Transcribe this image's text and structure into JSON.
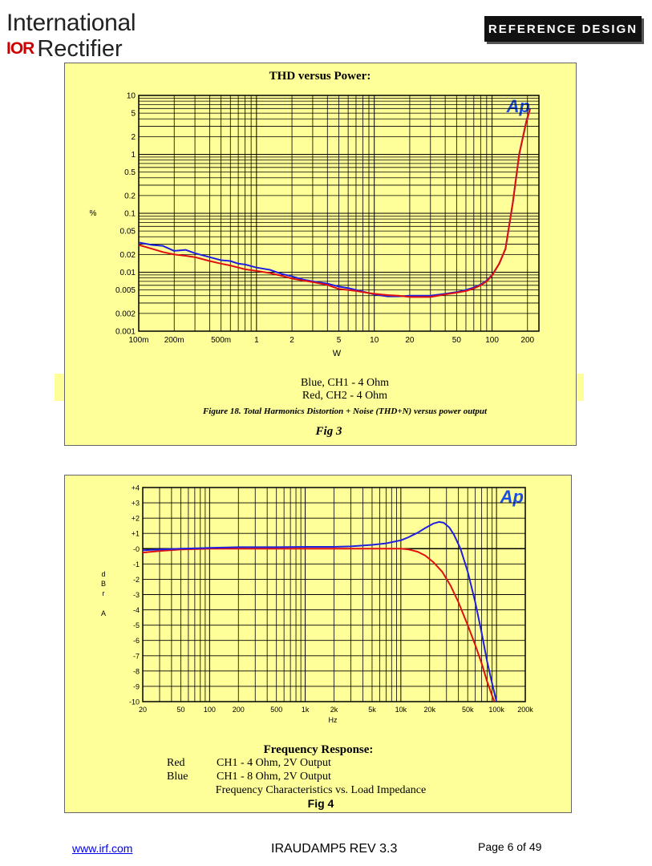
{
  "header": {
    "company_line1": "International",
    "company_mark": "IOR",
    "company_line2": "Rectifier",
    "badge": "REFERENCE DESIGN"
  },
  "fig3": {
    "panel_title": "THD versus Power:",
    "ylabel": "%",
    "xlabel": "W",
    "ap_logo": "Ap",
    "legend_line1": "Blue, CH1 - 4 Ohm",
    "legend_line2": "Red, CH2 - 4 Ohm",
    "caption": "Figure 18.  Total Harmonics Distortion + Noise (THD+N) versus power output",
    "fig_label": "Fig 3"
  },
  "fig4": {
    "ylabel_letters": [
      "d",
      "B",
      "r",
      "",
      "A"
    ],
    "xlabel": "Hz",
    "ap_logo": "Ap",
    "title": "Frequency Response:",
    "legend": [
      {
        "key": "Red",
        "desc": "CH1 - 4 Ohm, 2V Output"
      },
      {
        "key": "Blue",
        "desc": "CH1 - 8 Ohm, 2V Output"
      }
    ],
    "subtitle": "Frequency Characteristics vs. Load Impedance",
    "fig_label": "Fig 4"
  },
  "footer": {
    "link": "www.irf.com",
    "doc": "IRAUDAMP5 REV 3.3",
    "page": "Page 6 of 49"
  },
  "colors": {
    "panel": "#ffff99",
    "blue": "#1f1fe0",
    "red": "#e01010",
    "grid": "#000000"
  },
  "chart_data": [
    {
      "type": "line",
      "title": "THD versus Power:",
      "xlabel": "W",
      "ylabel": "%",
      "xscale": "log",
      "yscale": "log",
      "xlim": [
        0.1,
        250
      ],
      "ylim": [
        0.001,
        10
      ],
      "x_ticks": [
        {
          "v": 0.1,
          "label": "100m"
        },
        {
          "v": 0.2,
          "label": "200m"
        },
        {
          "v": 0.5,
          "label": "500m"
        },
        {
          "v": 1,
          "label": "1"
        },
        {
          "v": 2,
          "label": "2"
        },
        {
          "v": 5,
          "label": "5"
        },
        {
          "v": 10,
          "label": "10"
        },
        {
          "v": 20,
          "label": "20"
        },
        {
          "v": 50,
          "label": "50"
        },
        {
          "v": 100,
          "label": "100"
        },
        {
          "v": 200,
          "label": "200"
        }
      ],
      "y_ticks": [
        {
          "v": 10,
          "label": "10"
        },
        {
          "v": 5,
          "label": "5"
        },
        {
          "v": 2,
          "label": "2"
        },
        {
          "v": 1,
          "label": "1"
        },
        {
          "v": 0.5,
          "label": "0.5"
        },
        {
          "v": 0.2,
          "label": "0.2"
        },
        {
          "v": 0.1,
          "label": "0.1"
        },
        {
          "v": 0.05,
          "label": "0.05"
        },
        {
          "v": 0.02,
          "label": "0.02"
        },
        {
          "v": 0.01,
          "label": "0.01"
        },
        {
          "v": 0.005,
          "label": "0.005"
        },
        {
          "v": 0.002,
          "label": "0.002"
        },
        {
          "v": 0.001,
          "label": "0.001"
        }
      ],
      "legend": "none",
      "grid": true,
      "series": [
        {
          "color": "#1f1fe0",
          "points": [
            [
              0.1,
              0.032
            ],
            [
              0.13,
              0.029
            ],
            [
              0.16,
              0.028
            ],
            [
              0.2,
              0.023
            ],
            [
              0.25,
              0.024
            ],
            [
              0.3,
              0.021
            ],
            [
              0.4,
              0.018
            ],
            [
              0.5,
              0.016
            ],
            [
              0.6,
              0.0155
            ],
            [
              0.7,
              0.014
            ],
            [
              0.8,
              0.0135
            ],
            [
              1.0,
              0.012
            ],
            [
              1.3,
              0.011
            ],
            [
              1.6,
              0.0095
            ],
            [
              2,
              0.0085
            ],
            [
              2.5,
              0.0075
            ],
            [
              3,
              0.007
            ],
            [
              4,
              0.0064
            ],
            [
              5,
              0.0057
            ],
            [
              6,
              0.0054
            ],
            [
              7,
              0.005
            ],
            [
              8,
              0.0047
            ],
            [
              10,
              0.0042
            ],
            [
              13,
              0.0039
            ],
            [
              16,
              0.0039
            ],
            [
              20,
              0.004
            ],
            [
              30,
              0.004
            ],
            [
              40,
              0.0043
            ],
            [
              50,
              0.0046
            ],
            [
              60,
              0.005
            ],
            [
              70,
              0.0055
            ],
            [
              80,
              0.0062
            ],
            [
              90,
              0.0072
            ],
            [
              100,
              0.009
            ],
            [
              115,
              0.014
            ],
            [
              130,
              0.025
            ],
            [
              150,
              0.15
            ],
            [
              170,
              1.0
            ],
            [
              195,
              3.6
            ],
            [
              210,
              6.0
            ]
          ]
        },
        {
          "color": "#e01010",
          "points": [
            [
              0.1,
              0.029
            ],
            [
              0.13,
              0.025
            ],
            [
              0.16,
              0.022
            ],
            [
              0.2,
              0.02
            ],
            [
              0.25,
              0.019
            ],
            [
              0.3,
              0.018
            ],
            [
              0.4,
              0.0155
            ],
            [
              0.5,
              0.014
            ],
            [
              0.6,
              0.013
            ],
            [
              0.7,
              0.012
            ],
            [
              0.8,
              0.0112
            ],
            [
              1.0,
              0.0105
            ],
            [
              1.3,
              0.0097
            ],
            [
              1.6,
              0.0088
            ],
            [
              2,
              0.0078
            ],
            [
              2.5,
              0.0072
            ],
            [
              3,
              0.0068
            ],
            [
              4,
              0.0061
            ],
            [
              5,
              0.0052
            ],
            [
              6,
              0.005
            ],
            [
              7,
              0.0048
            ],
            [
              8,
              0.0046
            ],
            [
              10,
              0.0043
            ],
            [
              13,
              0.0041
            ],
            [
              16,
              0.004
            ],
            [
              20,
              0.0038
            ],
            [
              30,
              0.0038
            ],
            [
              40,
              0.0042
            ],
            [
              50,
              0.0045
            ],
            [
              60,
              0.0048
            ],
            [
              70,
              0.0053
            ],
            [
              80,
              0.006
            ],
            [
              90,
              0.007
            ],
            [
              100,
              0.0088
            ],
            [
              115,
              0.014
            ],
            [
              130,
              0.025
            ],
            [
              150,
              0.15
            ],
            [
              170,
              1.0
            ],
            [
              195,
              3.5
            ],
            [
              210,
              5.8
            ]
          ]
        }
      ]
    },
    {
      "type": "line",
      "title": "Frequency Response:",
      "xlabel": "Hz",
      "ylabel": "dBr A",
      "xscale": "log",
      "xlim": [
        20,
        200000
      ],
      "ylim": [
        -10,
        4
      ],
      "x_ticks": [
        {
          "v": 20,
          "label": "20"
        },
        {
          "v": 50,
          "label": "50"
        },
        {
          "v": 100,
          "label": "100"
        },
        {
          "v": 200,
          "label": "200"
        },
        {
          "v": 500,
          "label": "500"
        },
        {
          "v": 1000,
          "label": "1k"
        },
        {
          "v": 2000,
          "label": "2k"
        },
        {
          "v": 5000,
          "label": "5k"
        },
        {
          "v": 10000,
          "label": "10k"
        },
        {
          "v": 20000,
          "label": "20k"
        },
        {
          "v": 50000,
          "label": "50k"
        },
        {
          "v": 100000,
          "label": "100k"
        },
        {
          "v": 200000,
          "label": "200k"
        }
      ],
      "y_ticks": [
        {
          "v": 4,
          "label": "+4"
        },
        {
          "v": 3,
          "label": "+3"
        },
        {
          "v": 2,
          "label": "+2"
        },
        {
          "v": 1,
          "label": "+1"
        },
        {
          "v": 0,
          "label": "-0"
        },
        {
          "v": -1,
          "label": "-1"
        },
        {
          "v": -2,
          "label": "-2"
        },
        {
          "v": -3,
          "label": "-3"
        },
        {
          "v": -4,
          "label": "-4"
        },
        {
          "v": -5,
          "label": "-5"
        },
        {
          "v": -6,
          "label": "-6"
        },
        {
          "v": -7,
          "label": "-7"
        },
        {
          "v": -8,
          "label": "-8"
        },
        {
          "v": -9,
          "label": "-9"
        },
        {
          "v": -10,
          "label": "-10"
        }
      ],
      "legend": "none",
      "grid": true,
      "series": [
        {
          "name": "Red",
          "color": "#e01010",
          "points": [
            [
              20,
              -0.25
            ],
            [
              30,
              -0.15
            ],
            [
              50,
              -0.05
            ],
            [
              100,
              0
            ],
            [
              1000,
              0
            ],
            [
              5000,
              0
            ],
            [
              10000,
              0
            ],
            [
              12000,
              -0.05
            ],
            [
              15000,
              -0.2
            ],
            [
              18000,
              -0.45
            ],
            [
              22000,
              -0.9
            ],
            [
              27000,
              -1.5
            ],
            [
              33000,
              -2.4
            ],
            [
              40000,
              -3.5
            ],
            [
              50000,
              -5.0
            ],
            [
              60000,
              -6.3
            ],
            [
              70000,
              -7.5
            ],
            [
              80000,
              -8.7
            ],
            [
              90000,
              -9.6
            ],
            [
              95000,
              -10
            ]
          ]
        },
        {
          "name": "Blue",
          "color": "#1f1fe0",
          "points": [
            [
              20,
              -0.1
            ],
            [
              30,
              -0.05
            ],
            [
              50,
              0
            ],
            [
              100,
              0.05
            ],
            [
              200,
              0.1
            ],
            [
              500,
              0.1
            ],
            [
              1000,
              0.12
            ],
            [
              2000,
              0.12
            ],
            [
              3000,
              0.15
            ],
            [
              5000,
              0.25
            ],
            [
              7000,
              0.35
            ],
            [
              10000,
              0.55
            ],
            [
              12000,
              0.75
            ],
            [
              15000,
              1.05
            ],
            [
              18000,
              1.35
            ],
            [
              22000,
              1.65
            ],
            [
              25000,
              1.75
            ],
            [
              28000,
              1.7
            ],
            [
              32000,
              1.4
            ],
            [
              36000,
              0.9
            ],
            [
              42000,
              0.0
            ],
            [
              50000,
              -1.5
            ],
            [
              60000,
              -3.5
            ],
            [
              70000,
              -5.5
            ],
            [
              80000,
              -7.4
            ],
            [
              90000,
              -8.8
            ],
            [
              100000,
              -10
            ]
          ]
        }
      ]
    }
  ]
}
